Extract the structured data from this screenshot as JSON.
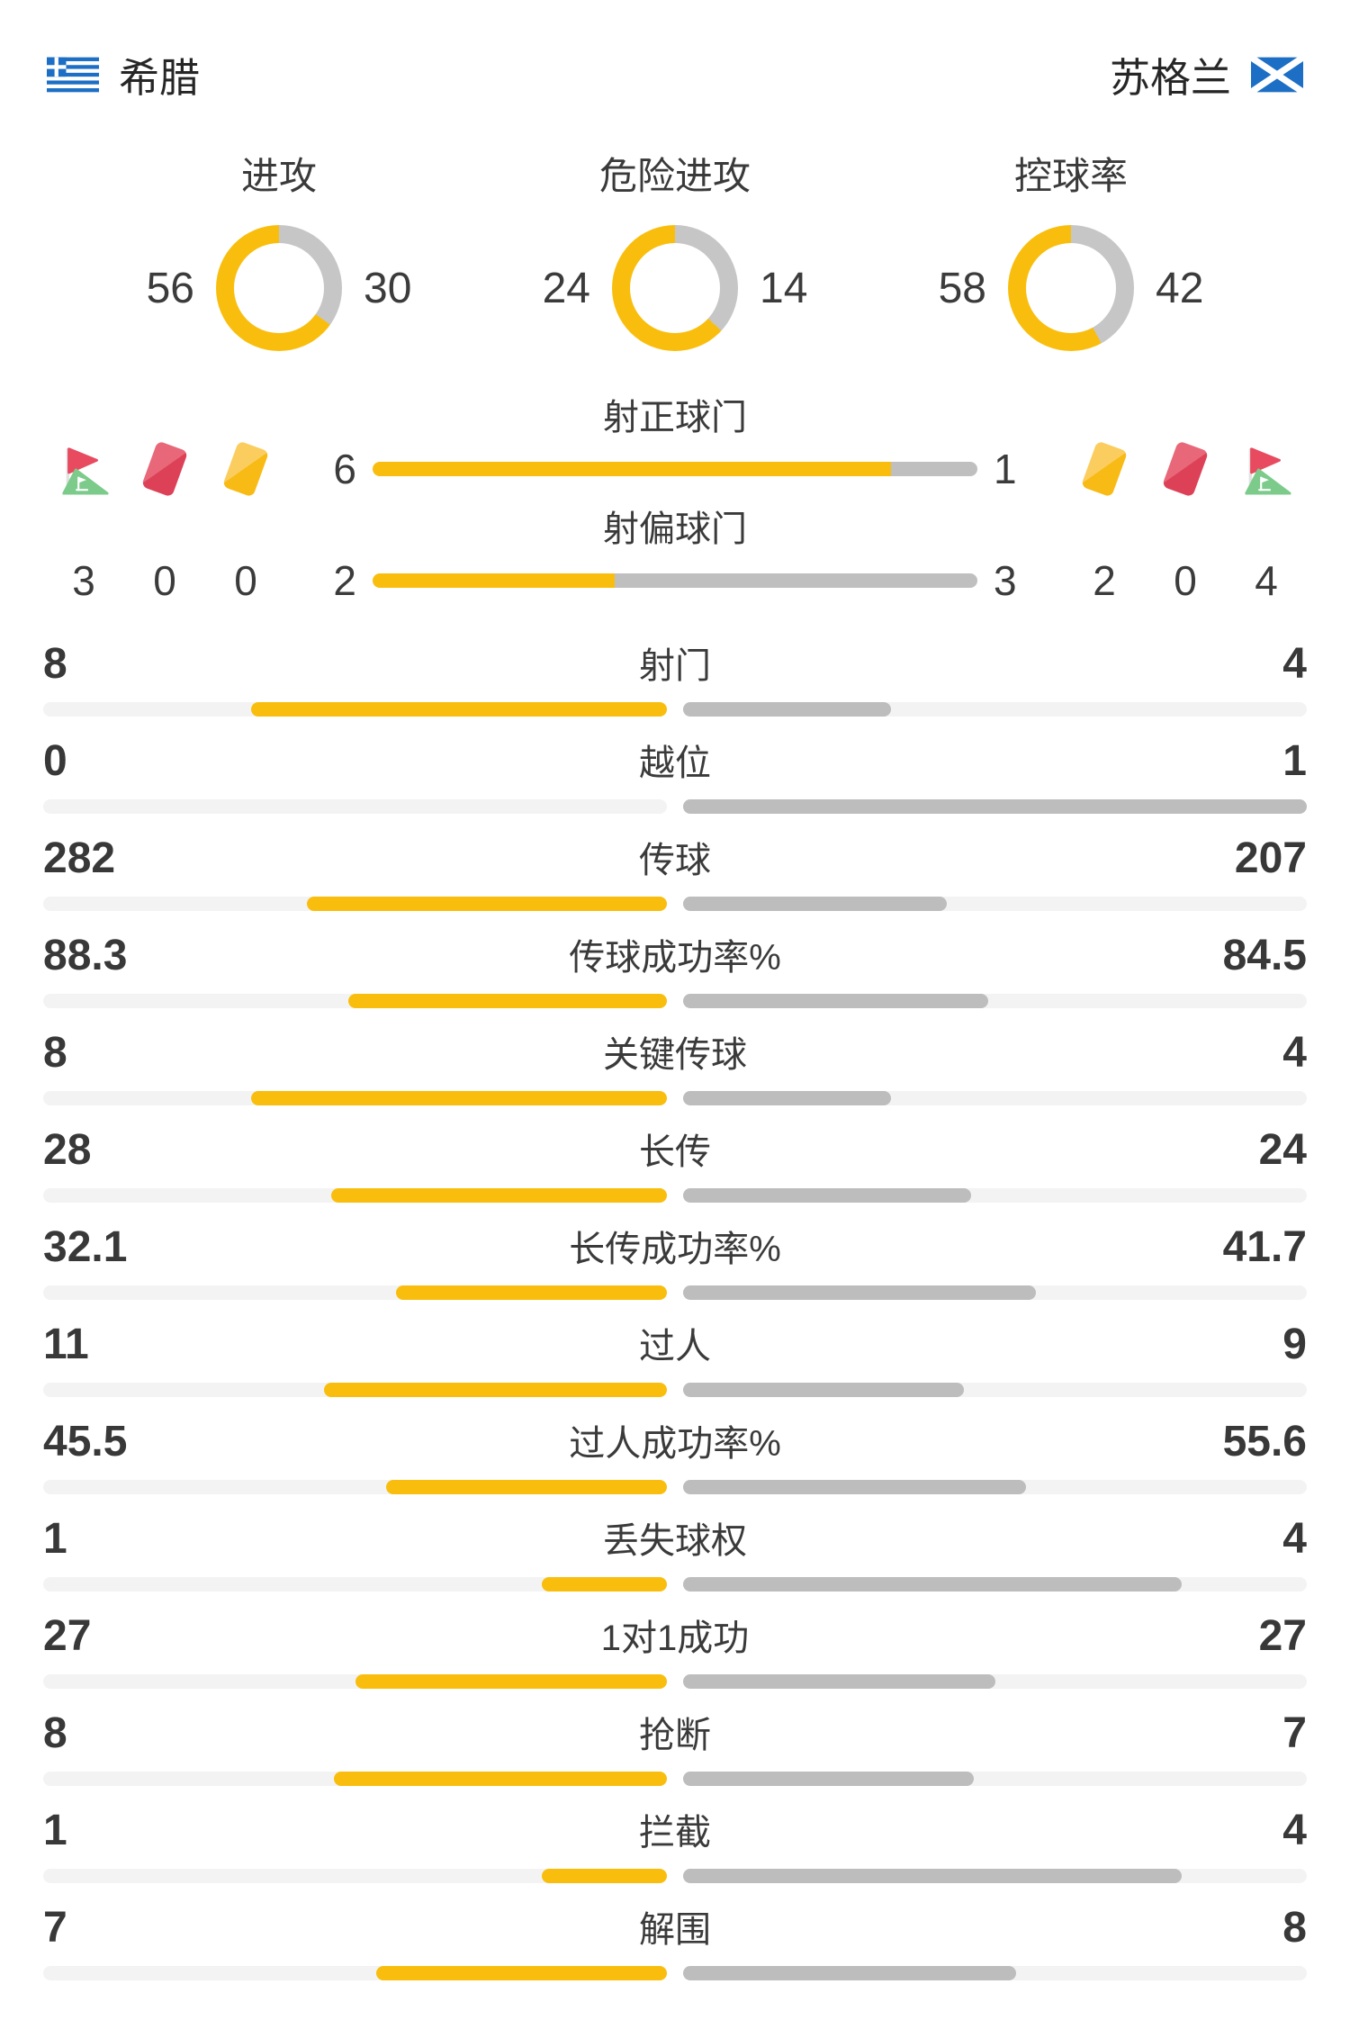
{
  "header": {
    "home_team": "希腊",
    "away_team": "苏格兰"
  },
  "donuts": [
    {
      "label": "进攻",
      "home": 56,
      "away": 30
    },
    {
      "label": "危险进攻",
      "home": 24,
      "away": 14
    },
    {
      "label": "控球率",
      "home": 58,
      "away": 42
    }
  ],
  "shots": [
    {
      "label": "射正球门",
      "home": 6,
      "away": 1
    },
    {
      "label": "射偏球门",
      "home": 2,
      "away": 3
    }
  ],
  "discipline": {
    "home": {
      "corner_kicks": 3,
      "red_cards": 0,
      "yellow_cards": 0
    },
    "away": {
      "yellow_cards": 2,
      "red_cards": 0,
      "corner_kicks": 4
    }
  },
  "stats": [
    {
      "label": "射门",
      "home": "8",
      "away": "4"
    },
    {
      "label": "越位",
      "home": "0",
      "away": "1"
    },
    {
      "label": "传球",
      "home": "282",
      "away": "207"
    },
    {
      "label": "传球成功率%",
      "home": "88.3",
      "away": "84.5"
    },
    {
      "label": "关键传球",
      "home": "8",
      "away": "4"
    },
    {
      "label": "长传",
      "home": "28",
      "away": "24"
    },
    {
      "label": "长传成功率%",
      "home": "32.1",
      "away": "41.7"
    },
    {
      "label": "过人",
      "home": "11",
      "away": "9"
    },
    {
      "label": "过人成功率%",
      "home": "45.5",
      "away": "55.6"
    },
    {
      "label": "丢失球权",
      "home": "1",
      "away": "4"
    },
    {
      "label": "1对1成功",
      "home": "27",
      "away": "27"
    },
    {
      "label": "抢断",
      "home": "8",
      "away": "7"
    },
    {
      "label": "拦截",
      "home": "1",
      "away": "4"
    },
    {
      "label": "解围",
      "home": "7",
      "away": "8"
    }
  ],
  "colors": {
    "home_accent": "#F9BE0D",
    "away_accent": "#BDBDBD",
    "bar_track": "#F3F3F3",
    "donut_gray": "#C6C6C6",
    "red_card": "#DD4157",
    "yellow_card": "#F8BA14",
    "corner_flag_red": "#E84A5F",
    "corner_flag_green": "#7CCB8B",
    "flag_blue": "#1C6FC4"
  },
  "chart_data": [
    {
      "type": "pie",
      "title": "进攻",
      "labels": [
        "希腊",
        "苏格兰"
      ],
      "values": [
        56,
        30
      ],
      "colors": [
        "#F9BE0D",
        "#C6C6C6"
      ]
    },
    {
      "type": "pie",
      "title": "危险进攻",
      "labels": [
        "希腊",
        "苏格兰"
      ],
      "values": [
        24,
        14
      ],
      "colors": [
        "#F9BE0D",
        "#C6C6C6"
      ]
    },
    {
      "type": "pie",
      "title": "控球率",
      "labels": [
        "希腊",
        "苏格兰"
      ],
      "values": [
        58,
        42
      ],
      "colors": [
        "#F9BE0D",
        "#C6C6C6"
      ]
    },
    {
      "type": "bar",
      "title": "比赛统计 希腊 vs 苏格兰",
      "categories": [
        "射正球门",
        "射偏球门",
        "角球",
        "红牌",
        "黄牌",
        "射门",
        "越位",
        "传球",
        "传球成功率%",
        "关键传球",
        "长传",
        "长传成功率%",
        "过人",
        "过人成功率%",
        "丢失球权",
        "1对1成功",
        "抢断",
        "拦截",
        "解围"
      ],
      "series": [
        {
          "name": "希腊",
          "values": [
            6,
            2,
            3,
            0,
            0,
            8,
            0,
            282,
            88.3,
            8,
            28,
            32.1,
            11,
            45.5,
            1,
            27,
            8,
            1,
            7
          ]
        },
        {
          "name": "苏格兰",
          "values": [
            1,
            3,
            4,
            0,
            2,
            4,
            1,
            207,
            84.5,
            4,
            24,
            41.7,
            9,
            55.6,
            4,
            27,
            7,
            4,
            8
          ]
        }
      ],
      "legend_position": "none",
      "grid": false
    }
  ]
}
